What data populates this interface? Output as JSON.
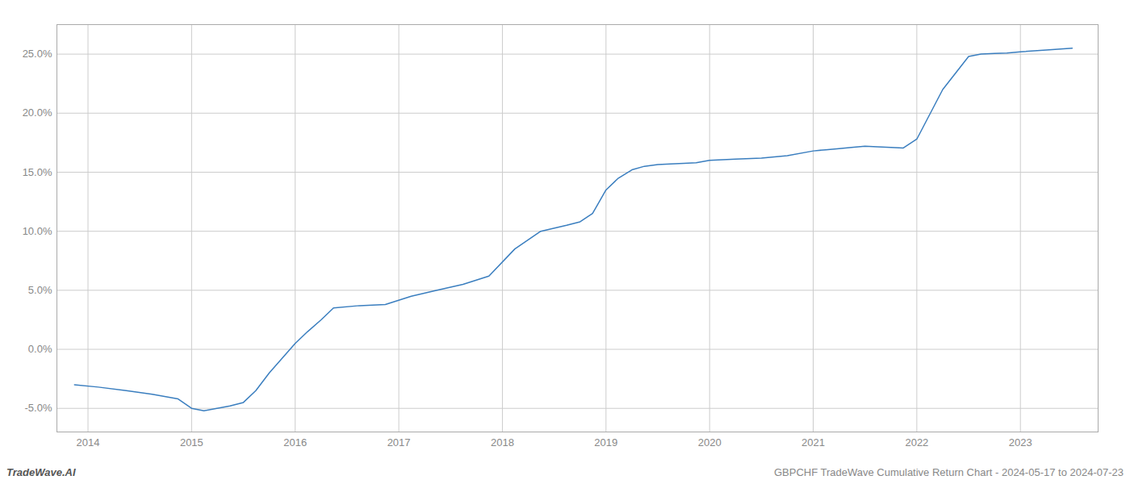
{
  "chart_data": {
    "type": "line",
    "x": [
      2013.87,
      2014.1,
      2014.37,
      2014.62,
      2014.87,
      2015.0,
      2015.12,
      2015.37,
      2015.5,
      2015.62,
      2015.75,
      2016.0,
      2016.12,
      2016.25,
      2016.37,
      2016.62,
      2016.87,
      2017.12,
      2017.37,
      2017.62,
      2017.87,
      2018.12,
      2018.37,
      2018.62,
      2018.75,
      2018.87,
      2019.0,
      2019.12,
      2019.25,
      2019.37,
      2019.5,
      2019.62,
      2019.75,
      2019.87,
      2020.0,
      2020.25,
      2020.5,
      2020.75,
      2021.0,
      2021.12,
      2021.25,
      2021.37,
      2021.5,
      2021.62,
      2021.75,
      2021.87,
      2022.0,
      2022.25,
      2022.5,
      2022.62,
      2022.75,
      2022.87,
      2023.0,
      2023.25,
      2023.5
    ],
    "values": [
      -3.0,
      -3.2,
      -3.5,
      -3.8,
      -4.2,
      -5.0,
      -5.2,
      -4.8,
      -4.5,
      -3.5,
      -2.0,
      0.5,
      1.5,
      2.5,
      3.5,
      3.7,
      3.8,
      4.5,
      5.0,
      5.5,
      6.2,
      8.5,
      10.0,
      10.5,
      10.8,
      11.5,
      13.5,
      14.5,
      15.2,
      15.5,
      15.65,
      15.7,
      15.75,
      15.8,
      16.0,
      16.1,
      16.2,
      16.4,
      16.8,
      16.9,
      17.0,
      17.1,
      17.2,
      17.15,
      17.1,
      17.05,
      17.8,
      22.0,
      24.8,
      25.0,
      25.05,
      25.1,
      25.2,
      25.35,
      25.5
    ],
    "color": "#3a7ebf",
    "xlim": [
      2013.7,
      2023.75
    ],
    "ylim": [
      -7.0,
      27.5
    ],
    "xticks": [
      2014,
      2015,
      2016,
      2017,
      2018,
      2019,
      2020,
      2021,
      2022,
      2023
    ],
    "yticks": [
      {
        "value": -5.0,
        "label": "-5.0%"
      },
      {
        "value": 0.0,
        "label": "0.0%"
      },
      {
        "value": 5.0,
        "label": "5.0%"
      },
      {
        "value": 10.0,
        "label": "10.0%"
      },
      {
        "value": 15.0,
        "label": "15.0%"
      },
      {
        "value": 20.0,
        "label": "20.0%"
      },
      {
        "value": 25.0,
        "label": "25.0%"
      }
    ],
    "grid": true,
    "annotations": [
      "TradeWave.AI",
      "GBPCHF TradeWave Cumulative Return Chart - 2024-05-17 to 2024-07-23"
    ]
  }
}
